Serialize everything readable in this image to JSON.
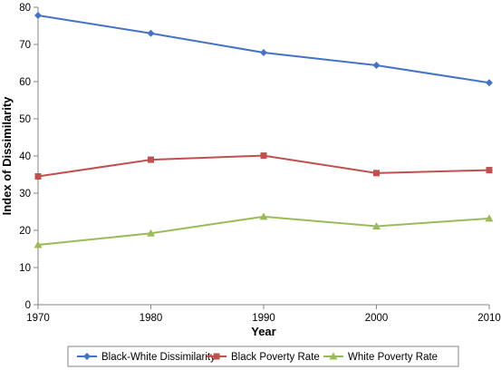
{
  "chart_data": {
    "type": "line",
    "xlabel": "Year",
    "ylabel": "Index of Dissimilarity",
    "x": [
      1970,
      1980,
      1990,
      2000,
      2010
    ],
    "x_ticks": [
      "1970",
      "1980",
      "1990",
      "2000",
      "2010"
    ],
    "y_ticks": [
      "0",
      "10",
      "20",
      "30",
      "40",
      "50",
      "60",
      "70",
      "80"
    ],
    "ylim": [
      0,
      80
    ],
    "grid": false,
    "legend_position": "bottom",
    "series": [
      {
        "name": "Black-White Dissimilarity",
        "values": [
          77.8,
          73.0,
          67.8,
          64.4,
          59.7
        ],
        "color": "#4472C4",
        "marker": "diamond"
      },
      {
        "name": "Black Poverty Rate",
        "values": [
          34.5,
          39.0,
          40.1,
          35.4,
          36.2
        ],
        "color": "#C0504D",
        "marker": "square"
      },
      {
        "name": "White Poverty Rate",
        "values": [
          16.1,
          19.2,
          23.7,
          21.1,
          23.2
        ],
        "color": "#9BBB59",
        "marker": "triangle"
      }
    ]
  }
}
